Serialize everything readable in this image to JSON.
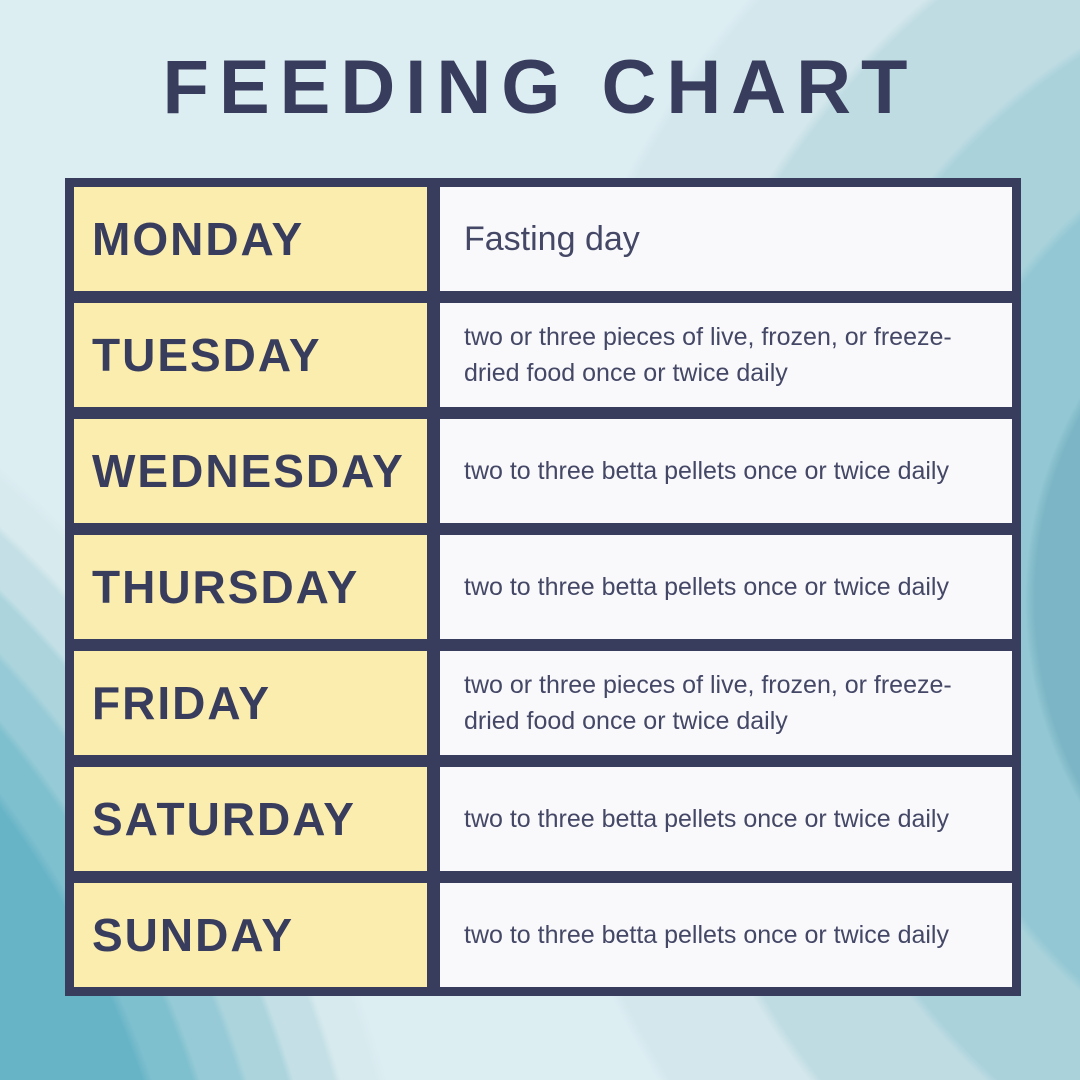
{
  "title": "FEEDING CHART",
  "colors": {
    "background": "#ddeef3",
    "border_navy": "#393d5d",
    "day_cell_yellow": "#fbedae",
    "instruction_cell_white": "#f9f9fb",
    "instruction_text": "#444866",
    "corner_teal": "#67b4c7"
  },
  "table": {
    "rows": [
      {
        "day": "MONDAY",
        "instruction": "Fasting day"
      },
      {
        "day": "TUESDAY",
        "instruction": "two or three pieces of live, frozen, or freeze-dried food once or twice daily"
      },
      {
        "day": "WEDNESDAY",
        "instruction": "two to three betta pellets once or twice daily"
      },
      {
        "day": "THURSDAY",
        "instruction": "two to three betta pellets once or twice daily"
      },
      {
        "day": "FRIDAY",
        "instruction": "two or three pieces of live, frozen, or freeze-dried food once or twice daily"
      },
      {
        "day": "SATURDAY",
        "instruction": "two to three betta pellets once or twice daily"
      },
      {
        "day": "SUNDAY",
        "instruction": "two to three betta pellets once or twice daily"
      }
    ]
  }
}
